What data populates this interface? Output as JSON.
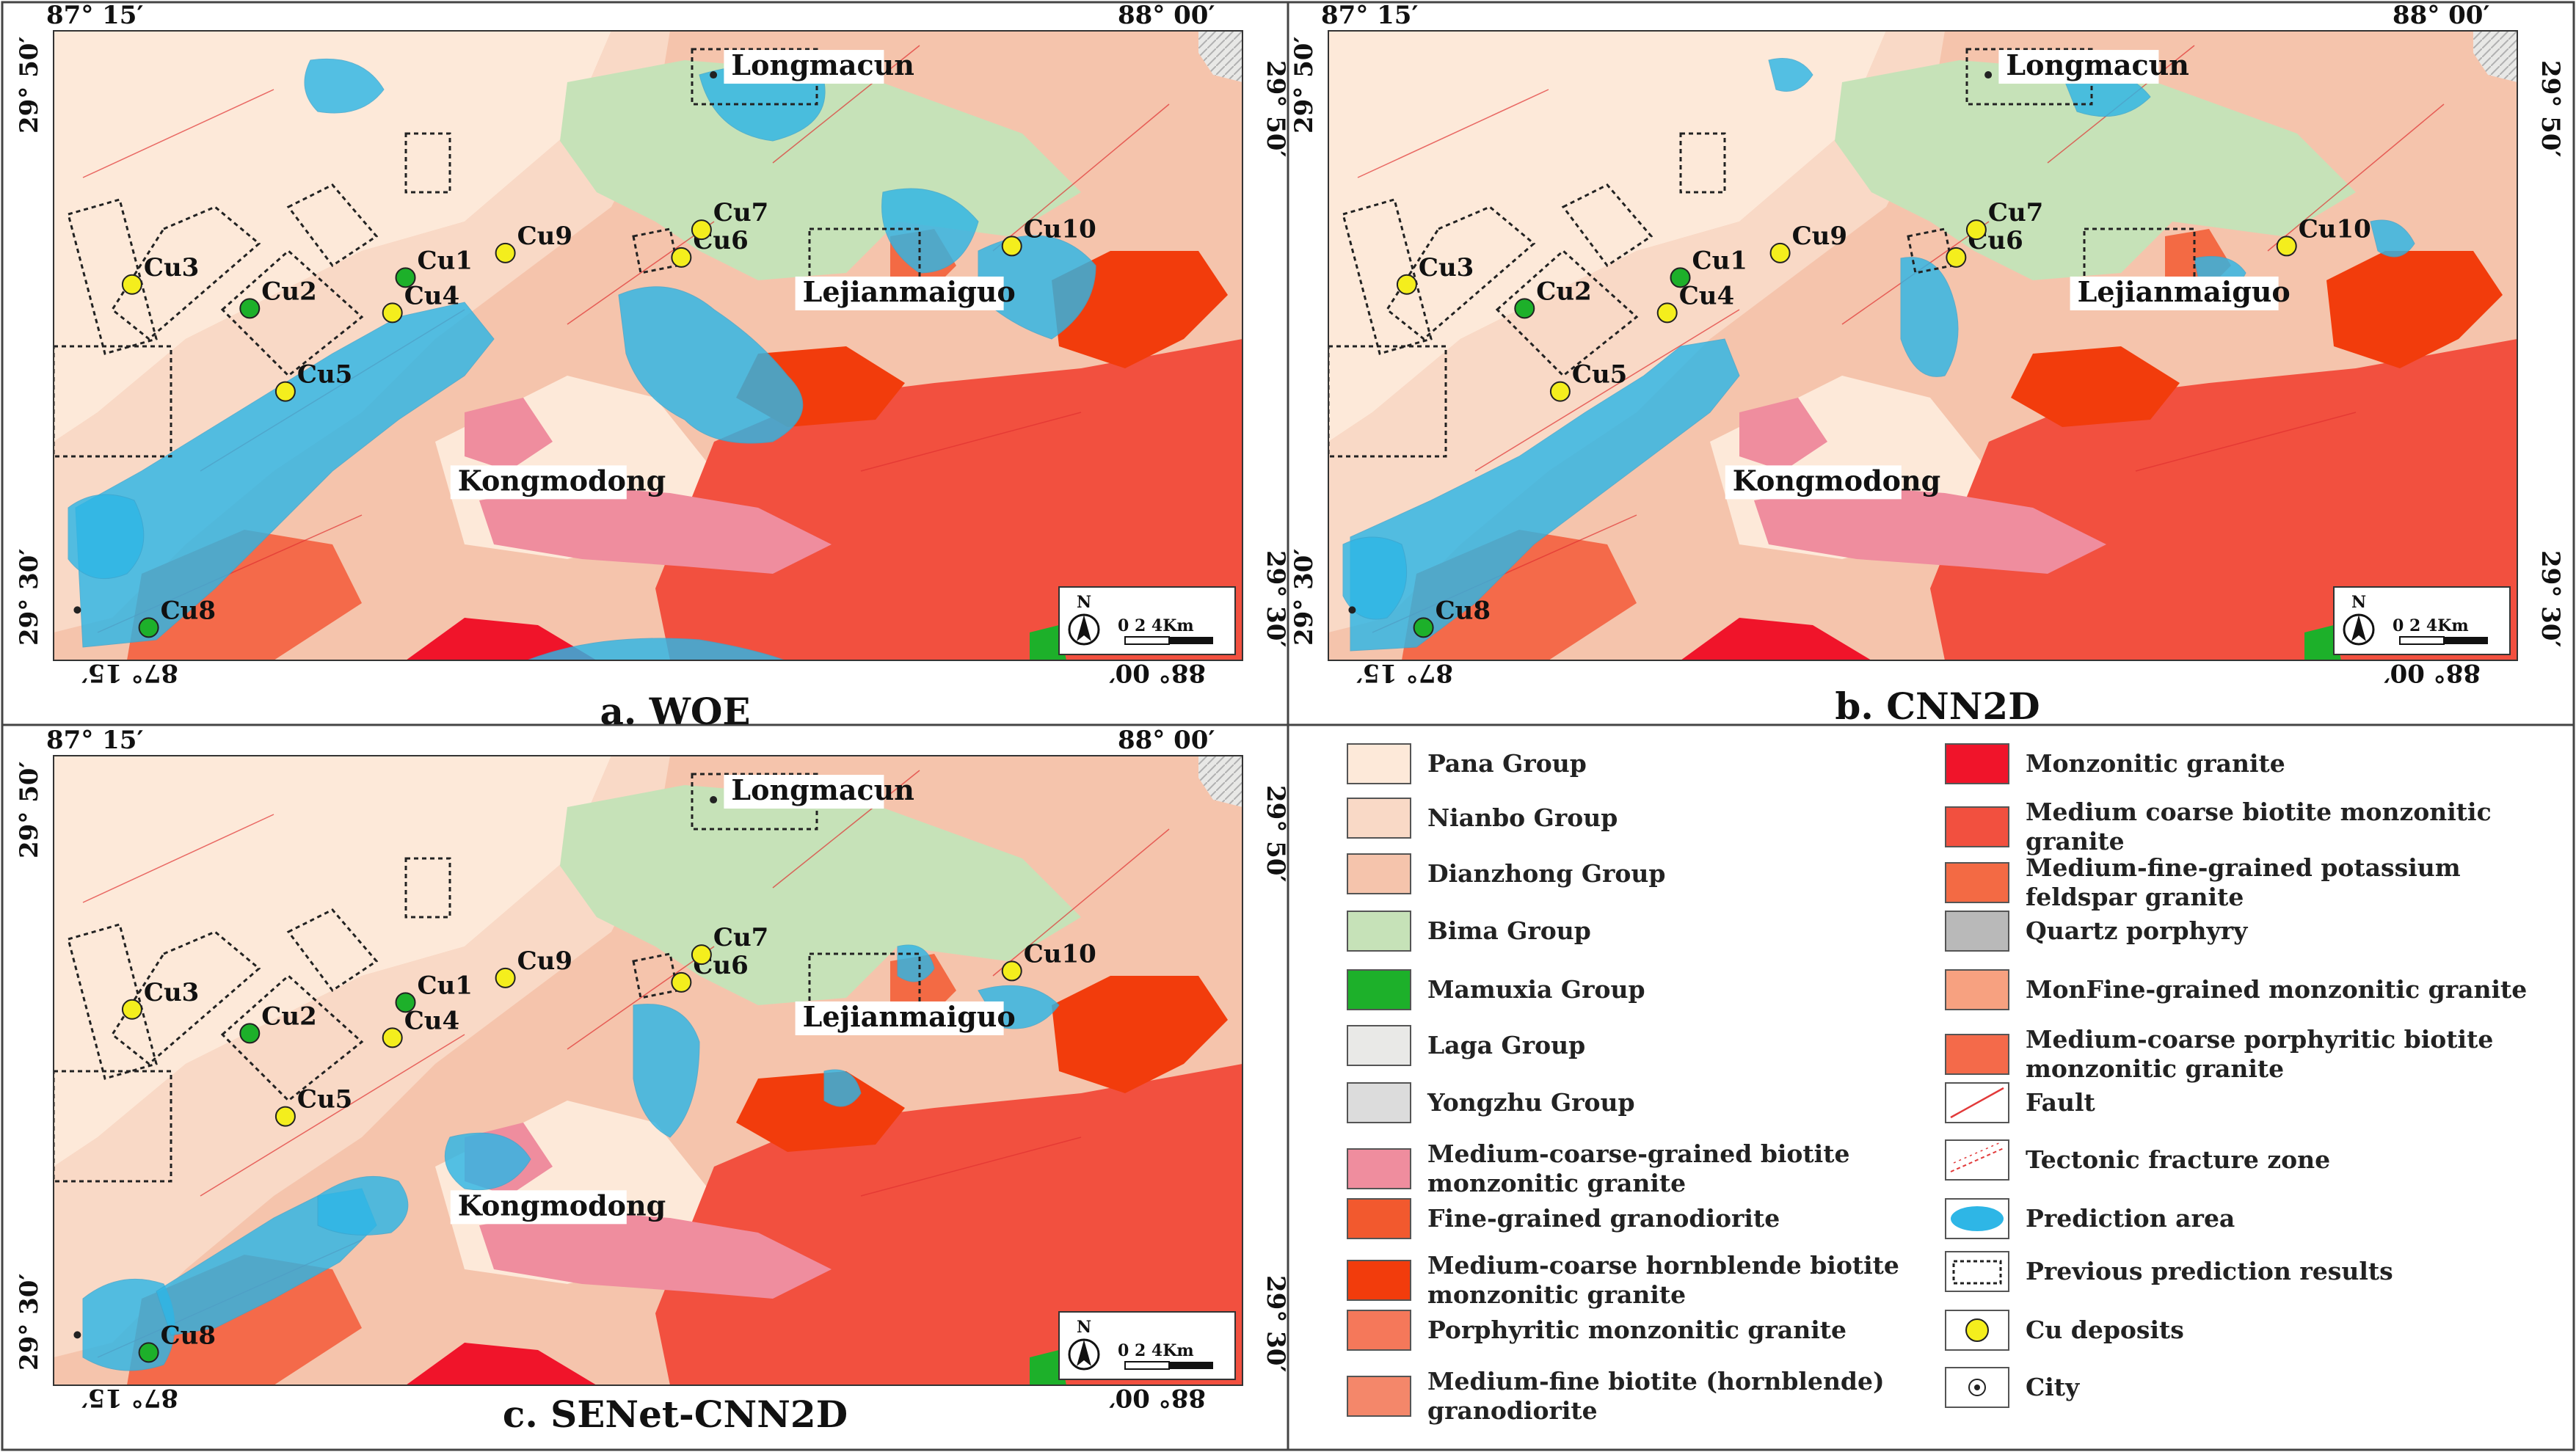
{
  "panels": [
    {
      "id": "a",
      "caption": "a. WOE",
      "coords": {
        "top_left_lon": "87° 15′",
        "top_right_lon": "88° 00′",
        "top_lat": "29° 50′",
        "bottom_lat": "29° 30′",
        "bottom_left_lon": "87° 15′",
        "bottom_right_lon": "88° 00′"
      },
      "places": [
        "Longmacun",
        "Lejianmaiguo",
        "Kongmodong"
      ],
      "deposits": [
        "Cu1",
        "Cu2",
        "Cu3",
        "Cu4",
        "Cu5",
        "Cu6",
        "Cu7",
        "Cu8",
        "Cu9",
        "Cu10"
      ],
      "north_label": "N",
      "scale_label": "0   2   4Km"
    },
    {
      "id": "b",
      "caption": "b. CNN2D",
      "coords": {
        "top_left_lon": "87° 15′",
        "top_right_lon": "88° 00′",
        "top_lat": "29° 50′",
        "bottom_lat": "29° 30′",
        "bottom_left_lon": "87° 15′",
        "bottom_right_lon": "88° 00′"
      },
      "places": [
        "Longmacun",
        "Lejianmaiguo",
        "Kongmodong"
      ],
      "deposits": [
        "Cu1",
        "Cu2",
        "Cu3",
        "Cu4",
        "Cu5",
        "Cu6",
        "Cu7",
        "Cu8",
        "Cu9",
        "Cu10"
      ],
      "north_label": "N",
      "scale_label": "0   2   4Km"
    },
    {
      "id": "c",
      "caption": "c. SENet-CNN2D",
      "coords": {
        "top_left_lon": "87° 15′",
        "top_right_lon": "88° 00′",
        "top_lat": "29° 50′",
        "bottom_lat": "29° 30′",
        "bottom_left_lon": "87° 15′",
        "bottom_right_lon": "88° 00′"
      },
      "places": [
        "Longmacun",
        "Lejianmaiguo",
        "Kongmodong"
      ],
      "deposits": [
        "Cu1",
        "Cu2",
        "Cu3",
        "Cu4",
        "Cu5",
        "Cu6",
        "Cu7",
        "Cu8",
        "Cu9",
        "Cu10"
      ],
      "north_label": "N",
      "scale_label": "0   2   4Km"
    }
  ],
  "legend": {
    "left": [
      {
        "label": "Pana Group",
        "color": "#fde9d9",
        "kind": "fill"
      },
      {
        "label": "Nianbo Group",
        "color": "#f9d9c6",
        "kind": "fill"
      },
      {
        "label": "Dianzhong Group",
        "color": "#f5c4ac",
        "kind": "fill"
      },
      {
        "label": "Bima Group",
        "color": "#c6e2b8",
        "kind": "fill"
      },
      {
        "label": "Mamuxia Group",
        "color": "#1db02a",
        "kind": "fill"
      },
      {
        "label": "Laga Group",
        "color": "#e9e9e7",
        "kind": "fill"
      },
      {
        "label": "Yongzhu Group",
        "color": "#dcdcdc",
        "kind": "fill"
      },
      {
        "label": "Medium-coarse-grained biotite monzonitic granite",
        "color": "#ef8d9e",
        "kind": "fill"
      },
      {
        "label": "Fine-grained granodiorite",
        "color": "#f2592e",
        "kind": "fill"
      },
      {
        "label": "Medium-coarse hornblende biotite monzonitic granite",
        "color": "#f23c0c",
        "kind": "fill"
      },
      {
        "label": "Porphyritic monzonitic granite",
        "color": "#f5785a",
        "kind": "fill"
      },
      {
        "label": "Medium-fine biotite (hornblende) granodiorite",
        "color": "#f4876a",
        "kind": "fill"
      }
    ],
    "right": [
      {
        "label": "Monzonitic granite",
        "color": "#f0142a",
        "kind": "fill"
      },
      {
        "label": "Medium coarse biotite monzonitic granite",
        "color": "#f2503f",
        "kind": "fill"
      },
      {
        "label": "Medium-fine-grained potassium feldspar granite",
        "color": "#f36a44",
        "kind": "fill"
      },
      {
        "label": "Quartz porphyry",
        "color": "#b9b9b9",
        "kind": "fill"
      },
      {
        "label": "MonFine-grained monzonitic granite",
        "color": "#f7a180",
        "kind": "fill"
      },
      {
        "label": "Medium-coarse porphyritic biotite monzonitic granite",
        "color": "#f46a4a",
        "kind": "fill"
      },
      {
        "label": "Fault",
        "color": "#e23a3a",
        "kind": "fault"
      },
      {
        "label": "Tectonic fracture zone",
        "color": "#e23a3a",
        "kind": "fracture"
      },
      {
        "label": "Prediction area",
        "color": "#2eb6e6",
        "kind": "prediction"
      },
      {
        "label": "Previous prediction results",
        "color": "#222222",
        "kind": "previous"
      },
      {
        "label": "Cu deposits",
        "color": "#f4ee1d",
        "kind": "deposit"
      },
      {
        "label": "City",
        "color": "#222222",
        "kind": "city"
      }
    ]
  },
  "colors": {
    "pana": "#fde9d9",
    "nianbo": "#f9d9c6",
    "dianzhong": "#f5c4ac",
    "bima": "#c6e2b8",
    "mamuxia": "#1db02a",
    "laga": "#e9e9e7",
    "granite_red": "#f04a34",
    "granite_orange": "#f36a44",
    "pink": "#ef8d9e",
    "prediction": "#2eb6e6",
    "deposit": "#f4ee1d",
    "deposit_green": "#1db02a"
  }
}
